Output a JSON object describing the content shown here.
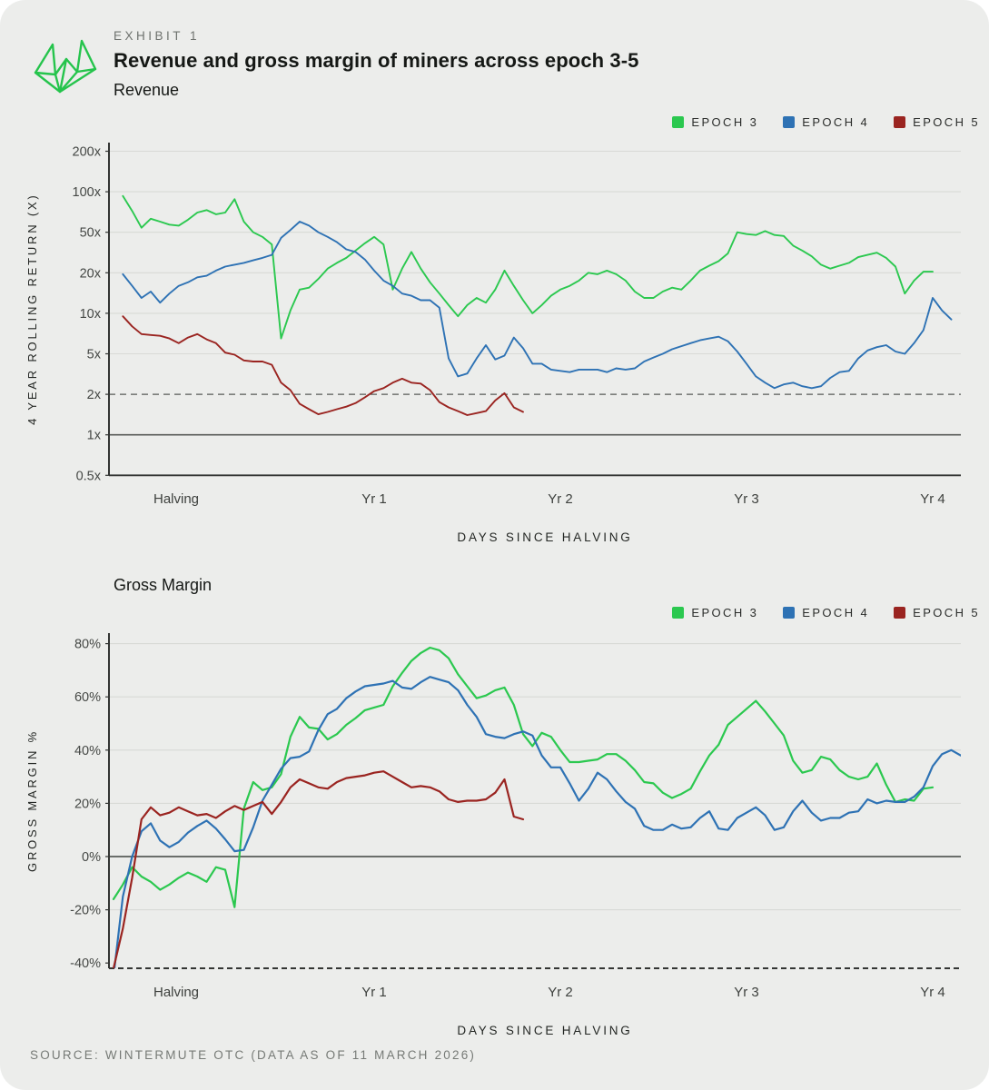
{
  "header": {
    "exhibit_label": "EXHIBIT 1",
    "title": "Revenue and gross margin of miners across epoch 3-5"
  },
  "colors": {
    "background": "#ECEDEB",
    "epoch3": "#2BC84F",
    "epoch4": "#2E72B4",
    "epoch5": "#9A2420",
    "grid": "#D8DAD6",
    "axis": "#333533",
    "reference": "#585B58",
    "tick_text": "#454845",
    "axis_title_text": "#242724"
  },
  "legend": {
    "items": [
      {
        "label": "EPOCH 3",
        "color_key": "epoch3"
      },
      {
        "label": "EPOCH 4",
        "color_key": "epoch4"
      },
      {
        "label": "EPOCH 5",
        "color_key": "epoch5"
      }
    ]
  },
  "footer": {
    "source_note": "SOURCE: WINTERMUTE OTC (DATA AS OF 11 MARCH 2026)"
  },
  "icons": {
    "logo": "wintermute-logo"
  },
  "chart_data": [
    {
      "type": "line",
      "title": "Revenue",
      "ylabel": "4 YEAR ROLLING RETURN (X)",
      "xlabel": "DAYS SINCE HALVING",
      "yscale": "log",
      "grid": "horizontal-only",
      "legend_position": "top-right",
      "yticks": [
        {
          "label": "200x",
          "value": 200,
          "line": "grid"
        },
        {
          "label": "100x",
          "value": 100,
          "line": "grid"
        },
        {
          "label": "50x",
          "value": 50,
          "line": "grid"
        },
        {
          "label": "20x",
          "value": 20,
          "line": "grid"
        },
        {
          "label": "10x",
          "value": 10,
          "line": "grid"
        },
        {
          "label": "5x",
          "value": 5,
          "line": "grid"
        },
        {
          "label": "2x",
          "value": 2,
          "line": "dashed"
        },
        {
          "label": "1x",
          "value": 1,
          "line": "solid"
        },
        {
          "label": "0.5x",
          "value": 0.5,
          "line": "none"
        }
      ],
      "xticks": [
        {
          "label": "Halving",
          "year": 0
        },
        {
          "label": "Yr 1",
          "year": 1
        },
        {
          "label": "Yr 2",
          "year": 2
        },
        {
          "label": "Yr 3",
          "year": 3
        },
        {
          "label": "Yr 4",
          "year": 4
        }
      ],
      "bottom_edge": {
        "style": "solid"
      },
      "x_unit": "years_since_halving",
      "series": [
        {
          "name": "EPOCH 3",
          "color_key": "epoch3",
          "x_start": -0.35,
          "x_step": 0.05,
          "values": [
            93,
            72,
            54,
            63,
            60,
            57,
            56,
            62,
            70,
            73,
            68,
            70,
            88,
            60,
            50,
            45,
            38,
            6.5,
            10.5,
            15,
            15.5,
            18,
            22,
            25,
            28,
            33,
            39,
            45,
            38,
            15,
            22,
            32,
            22,
            17,
            14,
            11.5,
            9.5,
            11.5,
            13,
            12,
            15,
            21,
            16,
            12.5,
            10,
            11.5,
            13.5,
            15,
            16,
            17.5,
            20,
            19.5,
            21,
            19.5,
            17.5,
            14.5,
            13,
            13,
            14.5,
            15.5,
            15,
            17.5,
            21,
            23.5,
            26,
            31,
            50,
            48,
            47,
            51,
            47,
            46,
            37,
            33,
            29,
            24,
            22,
            23.5,
            25,
            28.5,
            30,
            31.5,
            28,
            23,
            14,
            17.5,
            20.5,
            20.5
          ]
        },
        {
          "name": "EPOCH 4",
          "color_key": "epoch4",
          "x_start": -0.35,
          "x_step": 0.05,
          "values": [
            19.5,
            16,
            13,
            14.5,
            12,
            14,
            16,
            17,
            18.5,
            19,
            21,
            23,
            24,
            25,
            26.5,
            28,
            30,
            44,
            52,
            60,
            56,
            50,
            45,
            40,
            34,
            32,
            27,
            21,
            17.5,
            16,
            14,
            13.5,
            12.5,
            12.5,
            11,
            4.5,
            3,
            3.2,
            4.5,
            5.8,
            4.4,
            4.8,
            6.6,
            5.5,
            4,
            4,
            3.5,
            3.4,
            3.3,
            3.5,
            3.5,
            3.5,
            3.3,
            3.6,
            3.5,
            3.6,
            4.2,
            4.6,
            5,
            5.4,
            5.7,
            6,
            6.3,
            6.5,
            6.7,
            6.2,
            5.2,
            4,
            3,
            2.6,
            2.3,
            2.5,
            2.6,
            2.4,
            2.3,
            2.4,
            2.9,
            3.3,
            3.4,
            4.5,
            5.3,
            5.6,
            5.8,
            5.2,
            5,
            6,
            7.5,
            13,
            10.5,
            9
          ]
        },
        {
          "name": "EPOCH 5",
          "color_key": "epoch5",
          "x_start": -0.35,
          "x_step": 0.05,
          "values": [
            9.5,
            8,
            7,
            6.9,
            6.8,
            6.5,
            6,
            6.6,
            7,
            6.4,
            6,
            5.1,
            4.9,
            4.3,
            4.2,
            4.2,
            3.9,
            2.6,
            2.2,
            1.7,
            1.55,
            1.42,
            1.48,
            1.55,
            1.62,
            1.72,
            1.9,
            2.15,
            2.3,
            2.6,
            2.85,
            2.6,
            2.55,
            2.2,
            1.75,
            1.6,
            1.5,
            1.4,
            1.45,
            1.5,
            1.8,
            2.05,
            1.6,
            1.48
          ]
        }
      ]
    },
    {
      "type": "line",
      "title": "Gross Margin",
      "ylabel": "GROSS MARGIN %",
      "xlabel": "DAYS SINCE HALVING",
      "yscale": "linear",
      "grid": "horizontal-only",
      "legend_position": "top-right",
      "yticks": [
        {
          "label": "80%",
          "value": 80,
          "line": "grid"
        },
        {
          "label": "60%",
          "value": 60,
          "line": "grid"
        },
        {
          "label": "40%",
          "value": 40,
          "line": "grid"
        },
        {
          "label": "20%",
          "value": 20,
          "line": "grid"
        },
        {
          "label": "0%",
          "value": 0,
          "line": "solid"
        },
        {
          "label": "-20%",
          "value": -20,
          "line": "grid"
        },
        {
          "label": "-40%",
          "value": -40,
          "line": "none"
        }
      ],
      "xticks": [
        {
          "label": "Halving",
          "year": 0
        },
        {
          "label": "Yr 1",
          "year": 1
        },
        {
          "label": "Yr 2",
          "year": 2
        },
        {
          "label": "Yr 3",
          "year": 3
        },
        {
          "label": "Yr 4",
          "year": 4
        }
      ],
      "bottom_edge": {
        "style": "dashed"
      },
      "x_unit": "years_since_halving",
      "series": [
        {
          "name": "EPOCH 3",
          "color_key": "epoch3",
          "x_start": -0.4,
          "x_step": 0.05,
          "values": [
            -16,
            -10.5,
            -4,
            -7.5,
            -9.5,
            -12.5,
            -10.5,
            -8,
            -6,
            -7.5,
            -9.5,
            -4,
            -5,
            -19,
            18,
            28,
            25,
            26,
            31,
            45,
            52.5,
            48.5,
            48,
            44,
            46,
            49.5,
            52,
            55,
            56,
            57,
            64,
            69,
            73.5,
            76.5,
            78.5,
            77.5,
            74.5,
            68.5,
            64,
            59.5,
            60.5,
            62.5,
            63.5,
            57,
            46,
            41.5,
            46.5,
            45,
            40,
            35.5,
            35.5,
            36,
            36.5,
            38.5,
            38.5,
            36,
            32.5,
            28,
            27.5,
            24,
            22,
            23.5,
            25.5,
            32,
            38,
            42,
            49.5,
            52.5,
            55.5,
            58.5,
            54.5,
            50,
            45.5,
            36,
            31.5,
            32.5,
            37.5,
            36.5,
            32.5,
            30,
            29,
            30,
            35,
            27,
            20.5,
            21.5,
            21,
            25.5,
            26
          ]
        },
        {
          "name": "EPOCH 4",
          "color_key": "epoch4",
          "x_start": -0.4,
          "x_step": 0.05,
          "values": [
            -45,
            -15,
            0,
            9.5,
            12.5,
            6,
            3.5,
            5.5,
            9,
            11.5,
            13.5,
            10.5,
            6.5,
            2,
            2.5,
            11,
            21,
            27,
            33,
            37,
            37.5,
            39.5,
            47.5,
            53.5,
            55.5,
            59.5,
            62,
            64,
            64.5,
            65,
            66,
            63.5,
            63,
            65.5,
            67.5,
            66.5,
            65.5,
            62.5,
            57,
            52.5,
            46,
            45,
            44.5,
            46,
            47,
            45.5,
            38,
            33.5,
            33.5,
            27.5,
            21,
            25.5,
            31.5,
            29,
            24.5,
            20.5,
            18,
            11.5,
            10,
            10,
            12,
            10.5,
            11,
            14.5,
            17,
            10.5,
            10,
            14.5,
            16.5,
            18.5,
            15.5,
            10,
            11,
            17,
            21,
            16.5,
            13.5,
            14.5,
            14.5,
            16.5,
            17,
            21.5,
            20,
            21,
            20.5,
            20.5,
            22.5,
            26,
            34,
            38.5,
            40,
            38
          ]
        },
        {
          "name": "EPOCH 5",
          "color_key": "epoch5",
          "x_start": -0.4,
          "x_step": 0.05,
          "values": [
            -42,
            -27,
            -8,
            14,
            18.5,
            15.5,
            16.5,
            18.5,
            17,
            15.5,
            16,
            14.5,
            17,
            19,
            17.5,
            19,
            20.5,
            16,
            20.5,
            26,
            29,
            27.5,
            26,
            25.5,
            28,
            29.5,
            30,
            30.5,
            31.5,
            32,
            30,
            28,
            26,
            26.5,
            26,
            24.5,
            21.5,
            20.5,
            21,
            21,
            21.5,
            24,
            29,
            15,
            14
          ]
        }
      ]
    }
  ]
}
